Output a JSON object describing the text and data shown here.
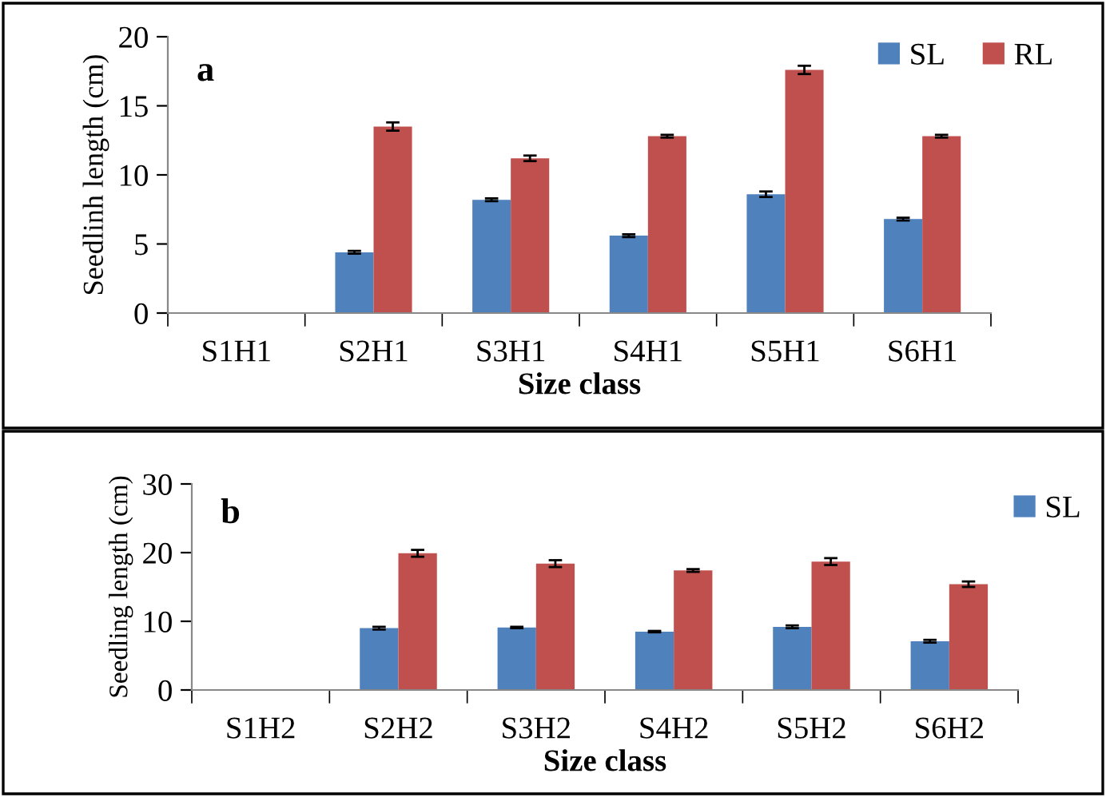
{
  "chart_data": [
    {
      "type": "bar",
      "xlabel": "Size class",
      "ylabel": "Seedlinh length (cm)",
      "annotations": [
        "a"
      ],
      "categories": [
        "S1H1",
        "S2H1",
        "S3H1",
        "S4H1",
        "S5H1",
        "S6H1"
      ],
      "series": [
        {
          "name": "SL",
          "color": "#4f81bd",
          "values": [
            null,
            4.4,
            8.2,
            5.6,
            8.6,
            6.8
          ],
          "errors": [
            null,
            0.1,
            0.1,
            0.1,
            0.2,
            0.1
          ]
        },
        {
          "name": "RL",
          "color": "#c0504d",
          "values": [
            null,
            13.5,
            11.2,
            12.8,
            17.6,
            12.8
          ],
          "errors": [
            null,
            0.3,
            0.2,
            0.1,
            0.3,
            0.1
          ]
        }
      ],
      "ylim": [
        0,
        20
      ],
      "yticks": [
        0,
        5,
        10,
        15,
        20
      ],
      "grid": false,
      "legend": "top right"
    },
    {
      "type": "bar",
      "xlabel": "Size class",
      "ylabel": "Seedling length (cm)",
      "annotations": [
        "b"
      ],
      "categories": [
        "S1H2",
        "S2H2",
        "S3H2",
        "S4H2",
        "S5H2",
        "S6H2"
      ],
      "series": [
        {
          "name": "SL",
          "color": "#4f81bd",
          "values": [
            null,
            9.0,
            9.1,
            8.5,
            9.2,
            7.1
          ],
          "errors": [
            null,
            0.2,
            0.1,
            0.1,
            0.2,
            0.2
          ]
        },
        {
          "color": "#c0504d",
          "values": [
            null,
            19.9,
            18.4,
            17.4,
            18.7,
            15.4
          ],
          "errors": [
            null,
            0.5,
            0.5,
            0.2,
            0.5,
            0.4
          ]
        }
      ],
      "ylim": [
        0,
        30
      ],
      "yticks": [
        0,
        10,
        20,
        30
      ],
      "grid": false,
      "legend": "top right"
    }
  ]
}
